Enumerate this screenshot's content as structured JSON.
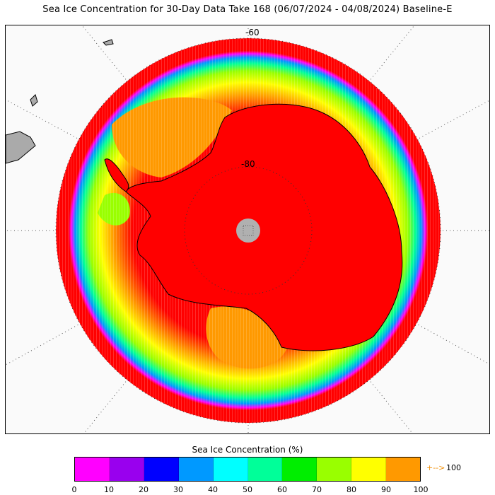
{
  "title": "Sea Ice Concentration for 30-Day Data Take 168 (06/07/2024 - 04/08/2024) Baseline-E",
  "map": {
    "latitude_labels": [
      "-60",
      "-80"
    ],
    "colors": {
      "open_ocean": "#ff0000",
      "ice_100": "#ff0000",
      "land_other": "#aaaaaa",
      "pole_hole": "#b0b0b0",
      "background": "#fafafa"
    }
  },
  "legend": {
    "title": "Sea Ice Concentration (%)",
    "bins": [
      {
        "from": 0,
        "to": 10,
        "color": "#ff00ff"
      },
      {
        "from": 10,
        "to": 20,
        "color": "#9900ee"
      },
      {
        "from": 20,
        "to": 30,
        "color": "#0000ff"
      },
      {
        "from": 30,
        "to": 40,
        "color": "#0099ff"
      },
      {
        "from": 40,
        "to": 50,
        "color": "#00ffff"
      },
      {
        "from": 50,
        "to": 60,
        "color": "#00ff99"
      },
      {
        "from": 60,
        "to": 70,
        "color": "#00ee00"
      },
      {
        "from": 70,
        "to": 80,
        "color": "#99ff00"
      },
      {
        "from": 80,
        "to": 90,
        "color": "#ffff00"
      },
      {
        "from": 90,
        "to": 100,
        "color": "#ff9900"
      }
    ],
    "ticks": [
      "0",
      "10",
      "20",
      "30",
      "40",
      "50",
      "60",
      "70",
      "80",
      "90",
      "100"
    ],
    "overflow_arrow": "+-->",
    "overflow_label": "100"
  }
}
